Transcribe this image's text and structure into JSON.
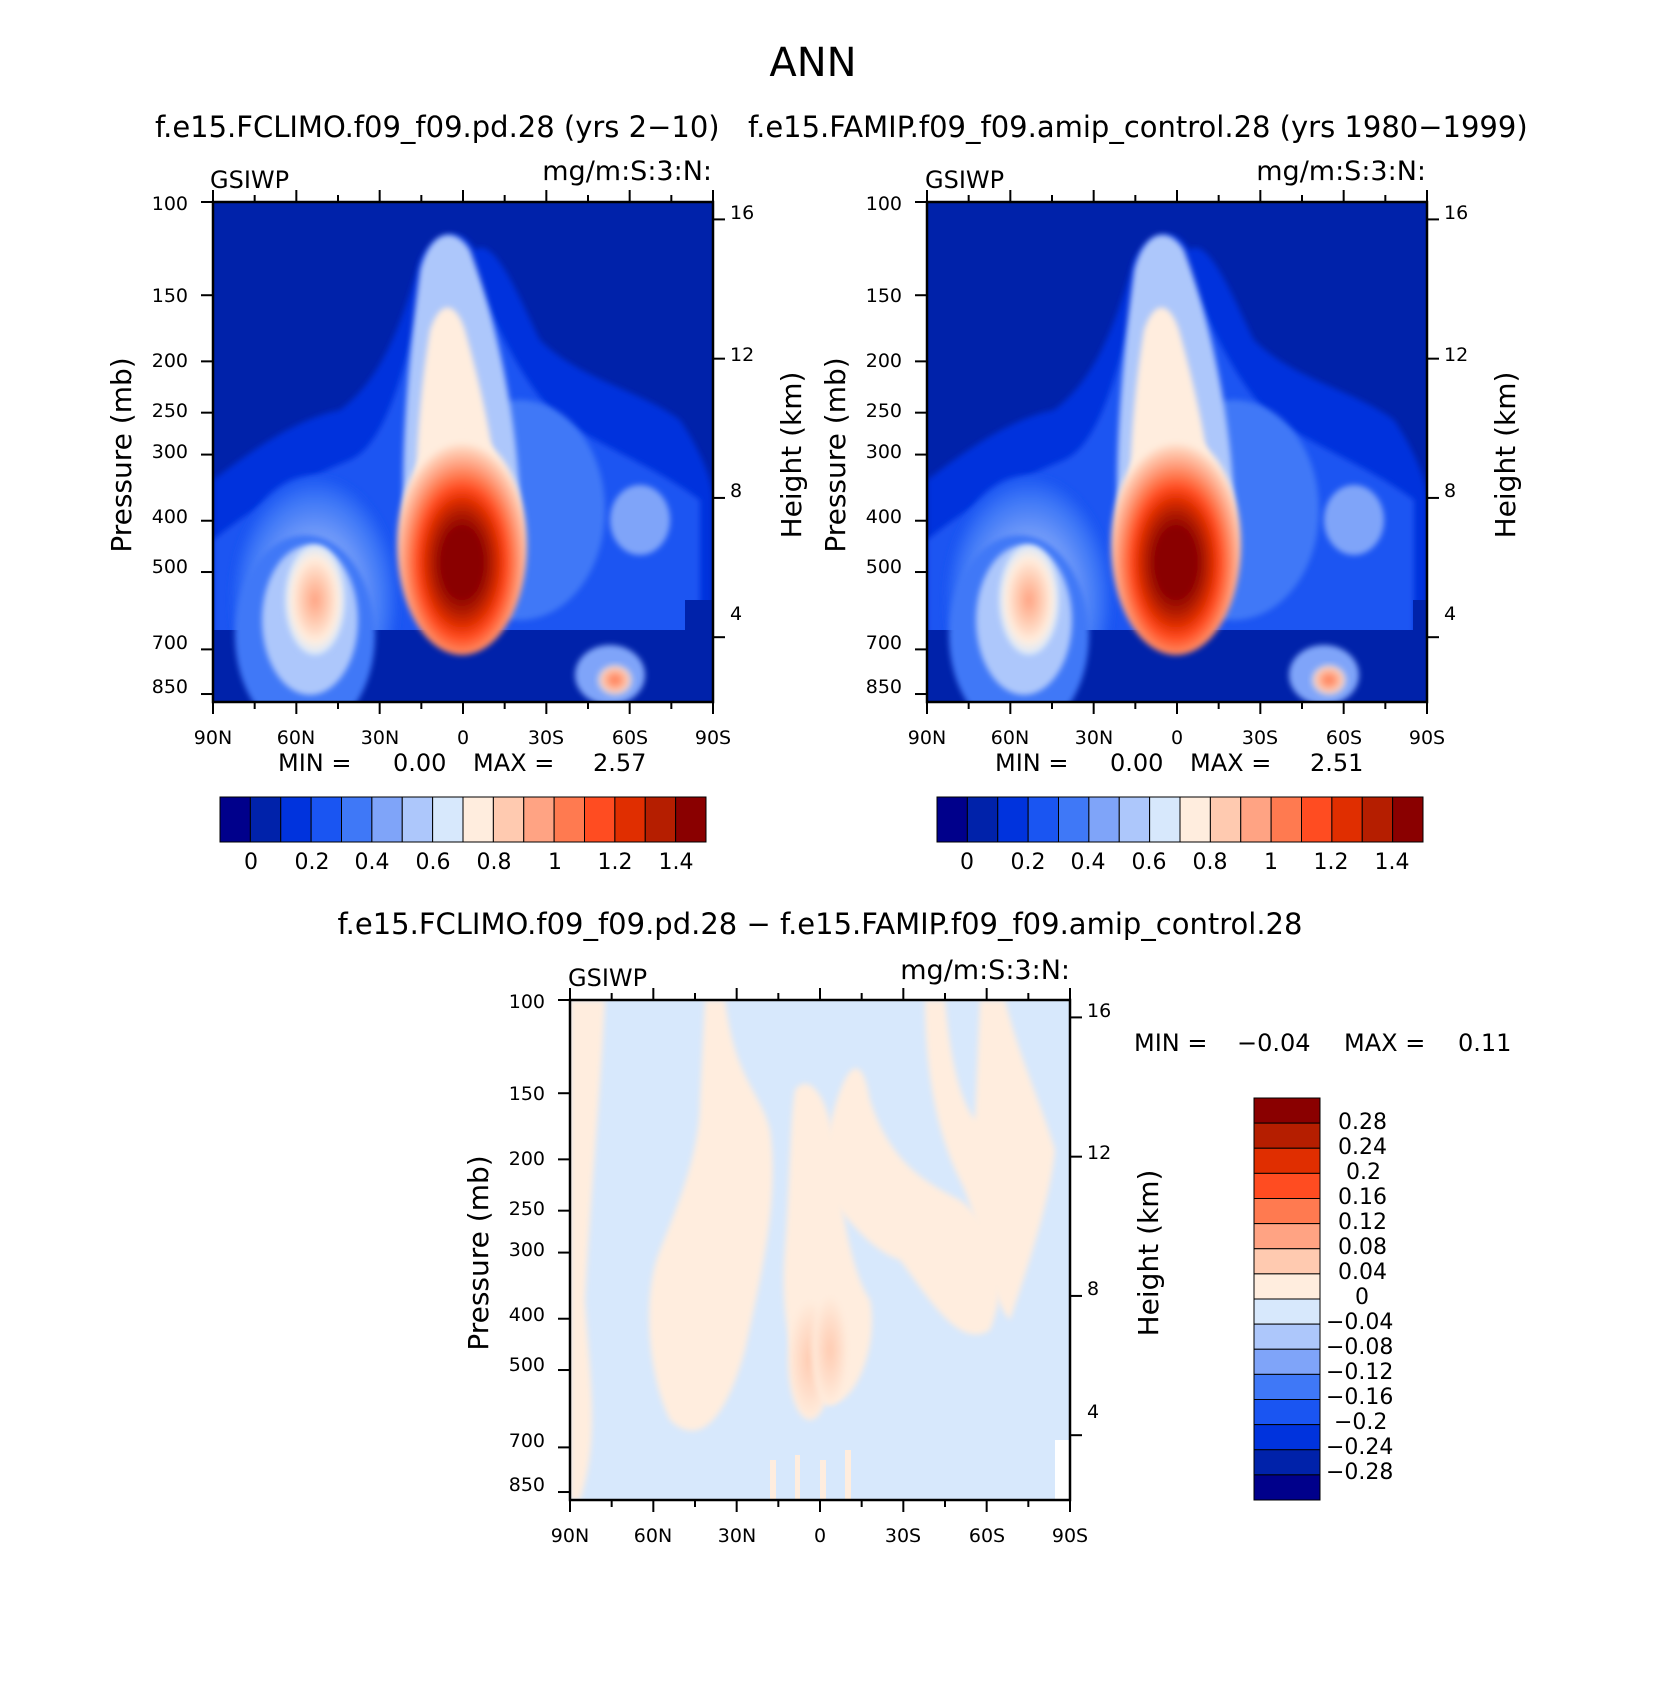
{
  "figure": {
    "title": "ANN"
  },
  "colors": {
    "abs_levels": [
      "#00008B",
      "#0022AA",
      "#0033DD",
      "#1A55F2",
      "#3F78F7",
      "#7FA4F9",
      "#ADC7FB",
      "#D7E8FC",
      "#FFEDDE",
      "#FFCAB0",
      "#FFA383",
      "#FF7A50",
      "#FF4C21",
      "#E02E00",
      "#B51E00",
      "#8A0000"
    ],
    "diff_levels": [
      "#00008B",
      "#0022AA",
      "#0033DD",
      "#1A55F2",
      "#3F78F7",
      "#7FA4F9",
      "#ADC7FB",
      "#D7E8FC",
      "#FFEDDE",
      "#FFCAB0",
      "#FFA383",
      "#FF7A50",
      "#FF4C21",
      "#E02E00",
      "#B51E00",
      "#8A0000"
    ]
  },
  "chart_data": [
    {
      "type": "heatmap",
      "title": "f.e15.FCLIMO.f09_f09.pd.28 (yrs 2-10)",
      "left_label": "GSIWP",
      "units_label": "mg/m:S:3:N:",
      "ylabel": "Pressure (mb)",
      "ylabel_right": "Height (km)",
      "x_ticks": [
        "90N",
        "60N",
        "30N",
        "0",
        "30S",
        "60S",
        "90S"
      ],
      "y_ticks": [
        100,
        150,
        200,
        250,
        300,
        400,
        500,
        700,
        850
      ],
      "y_right_ticks": [
        16,
        12,
        8,
        4
      ],
      "min_label": "MIN =",
      "min_value": "0.00",
      "max_label": "MAX =",
      "max_value": "2.57",
      "colorbar_labels": [
        "0",
        "0.2",
        "0.4",
        "0.6",
        "0.8",
        "1",
        "1.2",
        "1.4"
      ]
    },
    {
      "type": "heatmap",
      "title": "f.e15.FAMIP.f09_f09.amip_control.28 (yrs 1980-1999)",
      "left_label": "GSIWP",
      "units_label": "mg/m:S:3:N:",
      "ylabel": "Pressure (mb)",
      "ylabel_right": "Height (km)",
      "x_ticks": [
        "90N",
        "60N",
        "30N",
        "0",
        "30S",
        "60S",
        "90S"
      ],
      "y_ticks": [
        100,
        150,
        200,
        250,
        300,
        400,
        500,
        700,
        850
      ],
      "y_right_ticks": [
        16,
        12,
        8,
        4
      ],
      "min_label": "MIN =",
      "min_value": "0.00",
      "max_label": "MAX =",
      "max_value": "2.51",
      "colorbar_labels": [
        "0",
        "0.2",
        "0.4",
        "0.6",
        "0.8",
        "1",
        "1.2",
        "1.4"
      ]
    },
    {
      "type": "heatmap",
      "title": "f.e15.FCLIMO.f09_f09.pd.28 - f.e15.FAMIP.f09_f09.amip_control.28",
      "left_label": "GSIWP",
      "units_label": "mg/m:S:3:N:",
      "ylabel": "Pressure (mb)",
      "ylabel_right": "Height (km)",
      "x_ticks": [
        "90N",
        "60N",
        "30N",
        "0",
        "30S",
        "60S",
        "90S"
      ],
      "y_ticks": [
        100,
        150,
        200,
        250,
        300,
        400,
        500,
        700,
        850
      ],
      "y_right_ticks": [
        16,
        12,
        8,
        4
      ],
      "min_label": "MIN =",
      "min_value": "-0.04",
      "max_label": "MAX =",
      "max_value": "0.11",
      "colorbar_labels": [
        "0.28",
        "0.24",
        "0.2",
        "0.16",
        "0.12",
        "0.08",
        "0.04",
        "0",
        "-0.04",
        "-0.08",
        "-0.12",
        "-0.16",
        "-0.2",
        "-0.24",
        "-0.28"
      ]
    }
  ]
}
